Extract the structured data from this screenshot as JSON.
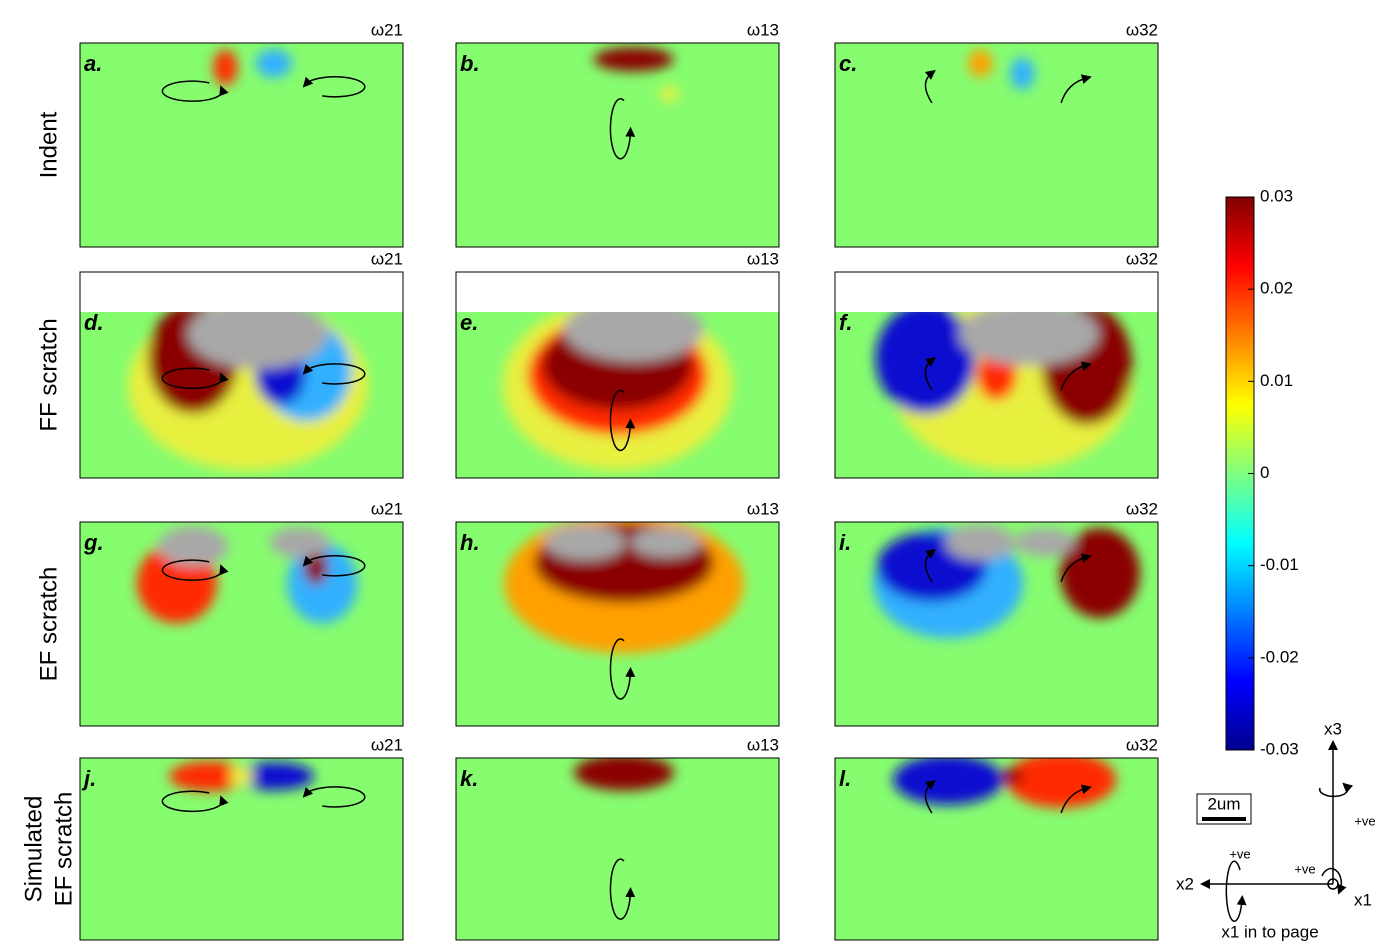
{
  "rows": [
    {
      "label_lines": [
        "Indent"
      ],
      "panels": [
        {
          "letter": "a.",
          "title": "ω21"
        },
        {
          "letter": "b.",
          "title": "ω13"
        },
        {
          "letter": "c.",
          "title": "ω32"
        }
      ]
    },
    {
      "label_lines": [
        "FF scratch"
      ],
      "panels": [
        {
          "letter": "d.",
          "title": "ω21"
        },
        {
          "letter": "e.",
          "title": "ω13"
        },
        {
          "letter": "f.",
          "title": "ω32"
        }
      ]
    },
    {
      "label_lines": [
        "EF scratch"
      ],
      "panels": [
        {
          "letter": "g.",
          "title": "ω21"
        },
        {
          "letter": "h.",
          "title": "ω13"
        },
        {
          "letter": "i.",
          "title": "ω32"
        }
      ]
    },
    {
      "label_lines": [
        "Simulated",
        "EF scratch"
      ],
      "panels": [
        {
          "letter": "j.",
          "title": "ω21"
        },
        {
          "letter": "k.",
          "title": "ω13"
        },
        {
          "letter": "l.",
          "title": "ω32"
        }
      ]
    }
  ],
  "colorbar": {
    "lim": [
      -0.03,
      0.03
    ],
    "ticks": [
      0.03,
      0.02,
      0.01,
      0,
      -0.01,
      -0.02,
      -0.03
    ]
  },
  "scale_bar": "2um",
  "axes": {
    "x3": "x3",
    "x2": "x2",
    "x1": "x1",
    "rot_x3": "+ve",
    "rot_x2": "+ve",
    "rot_x1": "+ve",
    "note": "x1 in to page"
  }
}
